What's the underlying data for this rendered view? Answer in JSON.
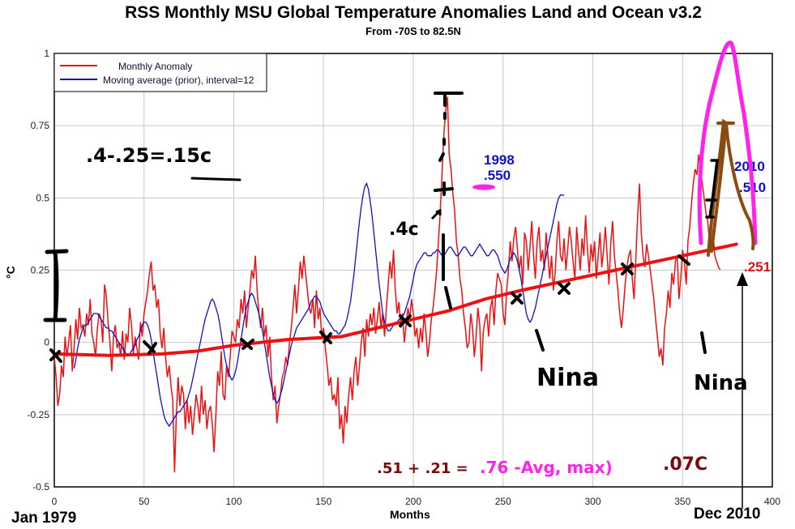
{
  "chart_data": {
    "type": "line",
    "title": "RSS Monthly MSU Global Temperature Anomalies Land and Ocean v3.2",
    "subtitle": "From -70S to 82.5N",
    "xlabel": "Months",
    "ylabel": "°C",
    "xlim": [
      0,
      400
    ],
    "ylim": [
      -0.5,
      1
    ],
    "xticks": [
      0,
      50,
      100,
      150,
      200,
      250,
      300,
      350,
      400
    ],
    "yticks": [
      1,
      0.75,
      0.5,
      0.25,
      0,
      -0.25,
      -0.5
    ],
    "ytick_labels": [
      "1",
      "0.75",
      "0.5",
      "0.25",
      "0",
      "-0.25",
      "-0.5"
    ],
    "grid": true,
    "legend_position": "top-left",
    "legend": [
      "Monthly Anomaly",
      "Moving average (prior), interval=12"
    ],
    "series": [
      {
        "name": "Monthly Anomaly",
        "color": "#ee1111",
        "x_start": 0,
        "values": [
          -0.05,
          -0.12,
          -0.22,
          -0.18,
          -0.08,
          -0.12,
          0.02,
          -0.05,
          0.0,
          0.06,
          -0.1,
          -0.02,
          0.08,
          0.01,
          0.12,
          0.05,
          0.06,
          0.02,
          0.1,
          0.06,
          0.15,
          0.03,
          0.0,
          -0.05,
          0.05,
          0.1,
          0.08,
          0.0,
          0.2,
          0.16,
          0.07,
          0.0,
          -0.1,
          0.02,
          0.06,
          -0.02,
          0.0,
          -0.05,
          0.04,
          -0.06,
          0.03,
          0.0,
          0.12,
          0.06,
          -0.04,
          0.02,
          -0.02,
          -0.06,
          0.07,
          0.02,
          0.1,
          0.14,
          0.18,
          0.24,
          0.28,
          0.18,
          0.2,
          0.12,
          0.15,
          0.03,
          -0.02,
          0.05,
          -0.05,
          -0.12,
          -0.08,
          -0.15,
          -0.2,
          -0.45,
          -0.25,
          -0.12,
          -0.22,
          -0.15,
          -0.18,
          -0.3,
          -0.2,
          -0.28,
          -0.22,
          -0.32,
          -0.25,
          -0.18,
          -0.22,
          -0.28,
          -0.15,
          -0.25,
          -0.2,
          -0.3,
          -0.24,
          -0.22,
          -0.28,
          -0.38,
          -0.25,
          -0.1,
          -0.15,
          -0.03,
          -0.18,
          -0.2,
          -0.08,
          -0.12,
          -0.05,
          0.04,
          0.02,
          0.0,
          0.08,
          0.05,
          0.15,
          0.1,
          0.18,
          0.05,
          0.12,
          0.18,
          0.25,
          0.22,
          0.3,
          0.18,
          0.1,
          0.05,
          0.12,
          0.02,
          0.06,
          -0.05,
          0.02,
          -0.12,
          -0.2,
          -0.15,
          -0.28,
          -0.22,
          -0.18,
          -0.12,
          -0.1,
          -0.05,
          -0.08,
          0.0,
          0.05,
          0.12,
          0.2,
          0.1,
          0.18,
          0.28,
          0.22,
          0.3,
          0.24,
          0.18,
          0.12,
          0.1,
          0.15,
          0.05,
          0.18,
          0.08,
          0.12,
          0.02,
          0.05,
          -0.02,
          -0.08,
          -0.15,
          -0.12,
          -0.2,
          -0.18,
          -0.22,
          -0.12,
          -0.3,
          -0.25,
          -0.35,
          -0.22,
          -0.28,
          -0.18,
          -0.12,
          -0.2,
          -0.1,
          -0.05,
          -0.15,
          -0.08,
          0.0,
          0.05,
          -0.05,
          0.08,
          0.02,
          0.1,
          0.06,
          0.12,
          0.03,
          0.08,
          0.14,
          0.05,
          0.1,
          0.02,
          0.12,
          0.2,
          0.28,
          0.22,
          0.32,
          0.18,
          0.1,
          0.14,
          0.05,
          0.1,
          0.0,
          0.06,
          0.12,
          0.08,
          0.15,
          0.1,
          0.02,
          0.05,
          -0.02,
          0.05,
          0.0,
          0.1,
          0.04,
          -0.05,
          0.0,
          0.08,
          0.12,
          0.18,
          0.25,
          0.35,
          0.45,
          0.58,
          0.72,
          0.8,
          0.85,
          0.65,
          0.6,
          0.52,
          0.46,
          0.35,
          0.3,
          0.22,
          0.18,
          0.1,
          0.05,
          -0.02,
          0.0,
          0.1,
          0.05,
          -0.05,
          0.02,
          0.12,
          0.06,
          -0.1,
          0.04,
          0.08,
          0.1,
          0.02,
          0.12,
          0.15,
          0.06,
          0.18,
          0.24,
          0.22,
          0.2,
          0.1,
          0.06,
          0.18,
          0.25,
          0.35,
          0.28,
          0.36,
          0.4,
          0.32,
          0.25,
          0.3,
          0.2,
          0.38,
          0.35,
          0.25,
          0.33,
          0.42,
          0.3,
          0.22,
          0.35,
          0.4,
          0.28,
          0.32,
          0.25,
          0.38,
          0.3,
          0.22,
          0.3,
          0.18,
          0.24,
          0.35,
          0.42,
          0.3,
          0.28,
          0.36,
          0.25,
          0.32,
          0.4,
          0.35,
          0.28,
          0.22,
          0.4,
          0.32,
          0.25,
          0.36,
          0.3,
          0.44,
          0.32,
          0.24,
          0.34,
          0.28,
          0.35,
          0.22,
          0.3,
          0.38,
          0.26,
          0.32,
          0.4,
          0.3,
          0.2,
          0.34,
          0.42,
          0.3,
          0.24,
          0.18,
          0.1,
          0.05,
          0.12,
          0.2,
          0.26,
          0.3,
          0.32,
          0.22,
          0.15,
          0.3,
          0.44,
          0.55,
          0.38,
          0.3,
          0.26,
          0.34,
          0.3,
          0.25,
          0.2,
          0.15,
          0.08,
          0.02,
          -0.05,
          -0.02,
          -0.08,
          0.05,
          0.1,
          0.18,
          0.12,
          0.24,
          0.2,
          0.28,
          0.3,
          0.15,
          0.22,
          0.32,
          0.28,
          0.2,
          0.35,
          0.4,
          0.48,
          0.55,
          0.6,
          0.58,
          0.65,
          0.6,
          0.55,
          0.5,
          0.45,
          0.42,
          0.35,
          0.32,
          0.38,
          0.3,
          0.28,
          0.26,
          0.251
        ]
      },
      {
        "name": "Moving average (prior), interval=12",
        "color": "#1010cc",
        "x_start": 11,
        "values": [
          -0.09,
          -0.06,
          -0.02,
          0.01,
          0.03,
          0.05,
          0.06,
          0.06,
          0.07,
          0.08,
          0.09,
          0.1,
          0.1,
          0.1,
          0.09,
          0.08,
          0.07,
          0.06,
          0.05,
          0.05,
          0.04,
          0.04,
          0.03,
          0.02,
          0.01,
          0.0,
          -0.01,
          -0.02,
          -0.03,
          -0.04,
          -0.04,
          -0.04,
          -0.03,
          -0.02,
          -0.01,
          0.01,
          0.02,
          0.04,
          0.06,
          0.07,
          0.07,
          0.06,
          0.04,
          0.01,
          -0.03,
          -0.07,
          -0.11,
          -0.15,
          -0.19,
          -0.22,
          -0.25,
          -0.27,
          -0.28,
          -0.29,
          -0.28,
          -0.27,
          -0.26,
          -0.25,
          -0.24,
          -0.24,
          -0.23,
          -0.22,
          -0.21,
          -0.2,
          -0.18,
          -0.16,
          -0.13,
          -0.1,
          -0.07,
          -0.04,
          -0.01,
          0.02,
          0.05,
          0.08,
          0.1,
          0.12,
          0.14,
          0.15,
          0.14,
          0.12,
          0.1,
          0.07,
          0.03,
          -0.01,
          -0.05,
          -0.08,
          -0.1,
          -0.12,
          -0.13,
          -0.12,
          -0.1,
          -0.07,
          -0.03,
          0.01,
          0.05,
          0.09,
          0.12,
          0.14,
          0.16,
          0.17,
          0.16,
          0.14,
          0.12,
          0.1,
          0.07,
          0.04,
          0.0,
          -0.04,
          -0.08,
          -0.12,
          -0.15,
          -0.18,
          -0.2,
          -0.21,
          -0.2,
          -0.18,
          -0.16,
          -0.13,
          -0.1,
          -0.07,
          -0.04,
          -0.01,
          0.01,
          0.03,
          0.05,
          0.06,
          0.07,
          0.08,
          0.09,
          0.1,
          0.11,
          0.12,
          0.14,
          0.15,
          0.16,
          0.16,
          0.15,
          0.14,
          0.12,
          0.1,
          0.09,
          0.08,
          0.07,
          0.06,
          0.05,
          0.04,
          0.04,
          0.03,
          0.03,
          0.04,
          0.05,
          0.06,
          0.08,
          0.11,
          0.14,
          0.19,
          0.24,
          0.3,
          0.36,
          0.42,
          0.47,
          0.51,
          0.54,
          0.55,
          0.53,
          0.49,
          0.44,
          0.38,
          0.32,
          0.26,
          0.2,
          0.15,
          0.1,
          0.07,
          0.05,
          0.04,
          0.04,
          0.05,
          0.06,
          0.07,
          0.07,
          0.08,
          0.08,
          0.09,
          0.1,
          0.12,
          0.14,
          0.16,
          0.19,
          0.22,
          0.25,
          0.27,
          0.28,
          0.29,
          0.3,
          0.31,
          0.31,
          0.3,
          0.3,
          0.3,
          0.31,
          0.31,
          0.32,
          0.32,
          0.31,
          0.3,
          0.3,
          0.31,
          0.32,
          0.33,
          0.33,
          0.32,
          0.31,
          0.3,
          0.3,
          0.31,
          0.32,
          0.33,
          0.33,
          0.32,
          0.31,
          0.3,
          0.3,
          0.31,
          0.32,
          0.33,
          0.34,
          0.33,
          0.32,
          0.31,
          0.3,
          0.3,
          0.31,
          0.32,
          0.32,
          0.31,
          0.3,
          0.28,
          0.26,
          0.25,
          0.24,
          0.25,
          0.27,
          0.29,
          0.3,
          0.31,
          0.3,
          0.28,
          0.25,
          0.22,
          0.18,
          0.14,
          0.1,
          0.08,
          0.07,
          0.08,
          0.1,
          0.12,
          0.15,
          0.18,
          0.21,
          0.24,
          0.27,
          0.3,
          0.33,
          0.36,
          0.39,
          0.42,
          0.45,
          0.48,
          0.5,
          0.51,
          0.51,
          0.51
        ]
      }
    ],
    "trend_line": {
      "name": "Hand-drawn trend",
      "color": "#ee1111",
      "points": [
        [
          0,
          -0.04
        ],
        [
          30,
          -0.045
        ],
        [
          60,
          -0.04
        ],
        [
          80,
          -0.03
        ],
        [
          100,
          -0.01
        ],
        [
          130,
          0.01
        ],
        [
          160,
          0.02
        ],
        [
          180,
          0.05
        ],
        [
          200,
          0.08
        ],
        [
          220,
          0.11
        ],
        [
          240,
          0.15
        ],
        [
          260,
          0.18
        ],
        [
          290,
          0.22
        ],
        [
          320,
          0.26
        ],
        [
          350,
          0.3
        ],
        [
          380,
          0.34
        ]
      ]
    },
    "annotations": {
      "peak_1998_year": "1998",
      "peak_1998_value": ".550",
      "peak_2010_year": "2010",
      "peak_2010_value": ".510",
      "last_value": ".251",
      "start_label": "Jan 1979",
      "end_label": "Dec 2010",
      "hand_calc_1": ".4-.25=.15c",
      "hand_note_4c": ".4c",
      "hand_nina_1": "Nina",
      "hand_nina_2": "Nina",
      "hand_bottom_formula_dark": ".51 + .21 =",
      "hand_bottom_formula_pink": ".76 -Avg, max) ",
      "hand_bottom_formula_end": ".07C"
    }
  }
}
